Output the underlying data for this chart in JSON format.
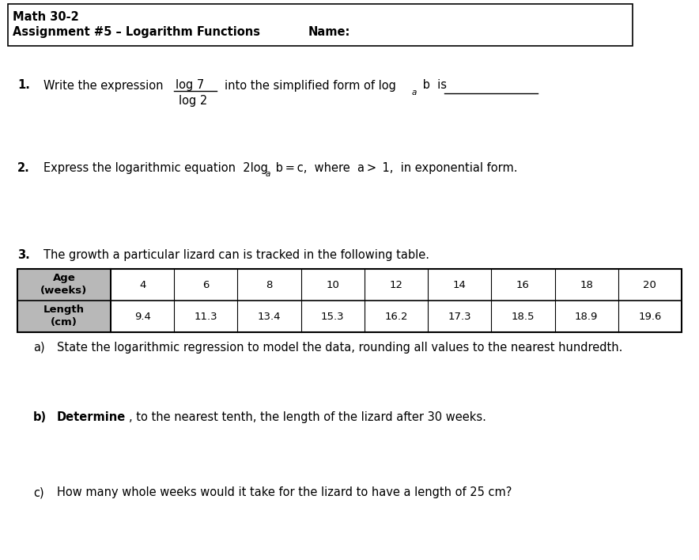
{
  "header_line1": "Math 30-2",
  "header_line2": "Assignment #5 – Logarithm Functions",
  "header_name": "Name:",
  "bg_color": "#ffffff",
  "table_header_bg": "#b8b8b8",
  "age_row": [
    "4",
    "6",
    "8",
    "10",
    "12",
    "14",
    "16",
    "18",
    "20"
  ],
  "length_row": [
    "9.4",
    "11.3",
    "13.4",
    "15.3",
    "16.2",
    "17.3",
    "18.5",
    "18.9",
    "19.6"
  ],
  "font_size_body": 10.5,
  "font_size_header": 10.5,
  "font_size_table": 9.5,
  "font_size_sub": 7.5
}
